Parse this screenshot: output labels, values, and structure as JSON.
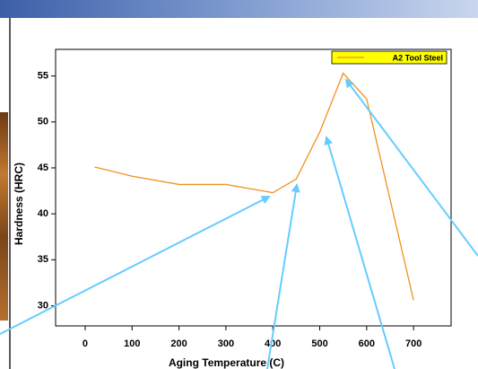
{
  "chart_data": {
    "type": "line",
    "x_label": "Aging Temperature (C)",
    "y_label": "Hardness (HRC)",
    "series": [
      {
        "name": "A2 Tool Steel",
        "color": "#f0901e",
        "x": [
          20,
          100,
          200,
          300,
          400,
          450,
          500,
          550,
          600,
          700
        ],
        "values": [
          45.1,
          44.1,
          43.2,
          43.2,
          42.3,
          43.8,
          48.9,
          55.3,
          52.5,
          30.6
        ]
      }
    ],
    "xlim": [
      -63,
      780
    ],
    "xticks": [
      0,
      100,
      200,
      300,
      400,
      500,
      600,
      700
    ],
    "ylim": [
      27.8,
      57.9
    ],
    "yticks": [
      30,
      35,
      40,
      45,
      50,
      55
    ],
    "legend": "top-right",
    "legend_color": "#ffff00",
    "grid": false
  }
}
